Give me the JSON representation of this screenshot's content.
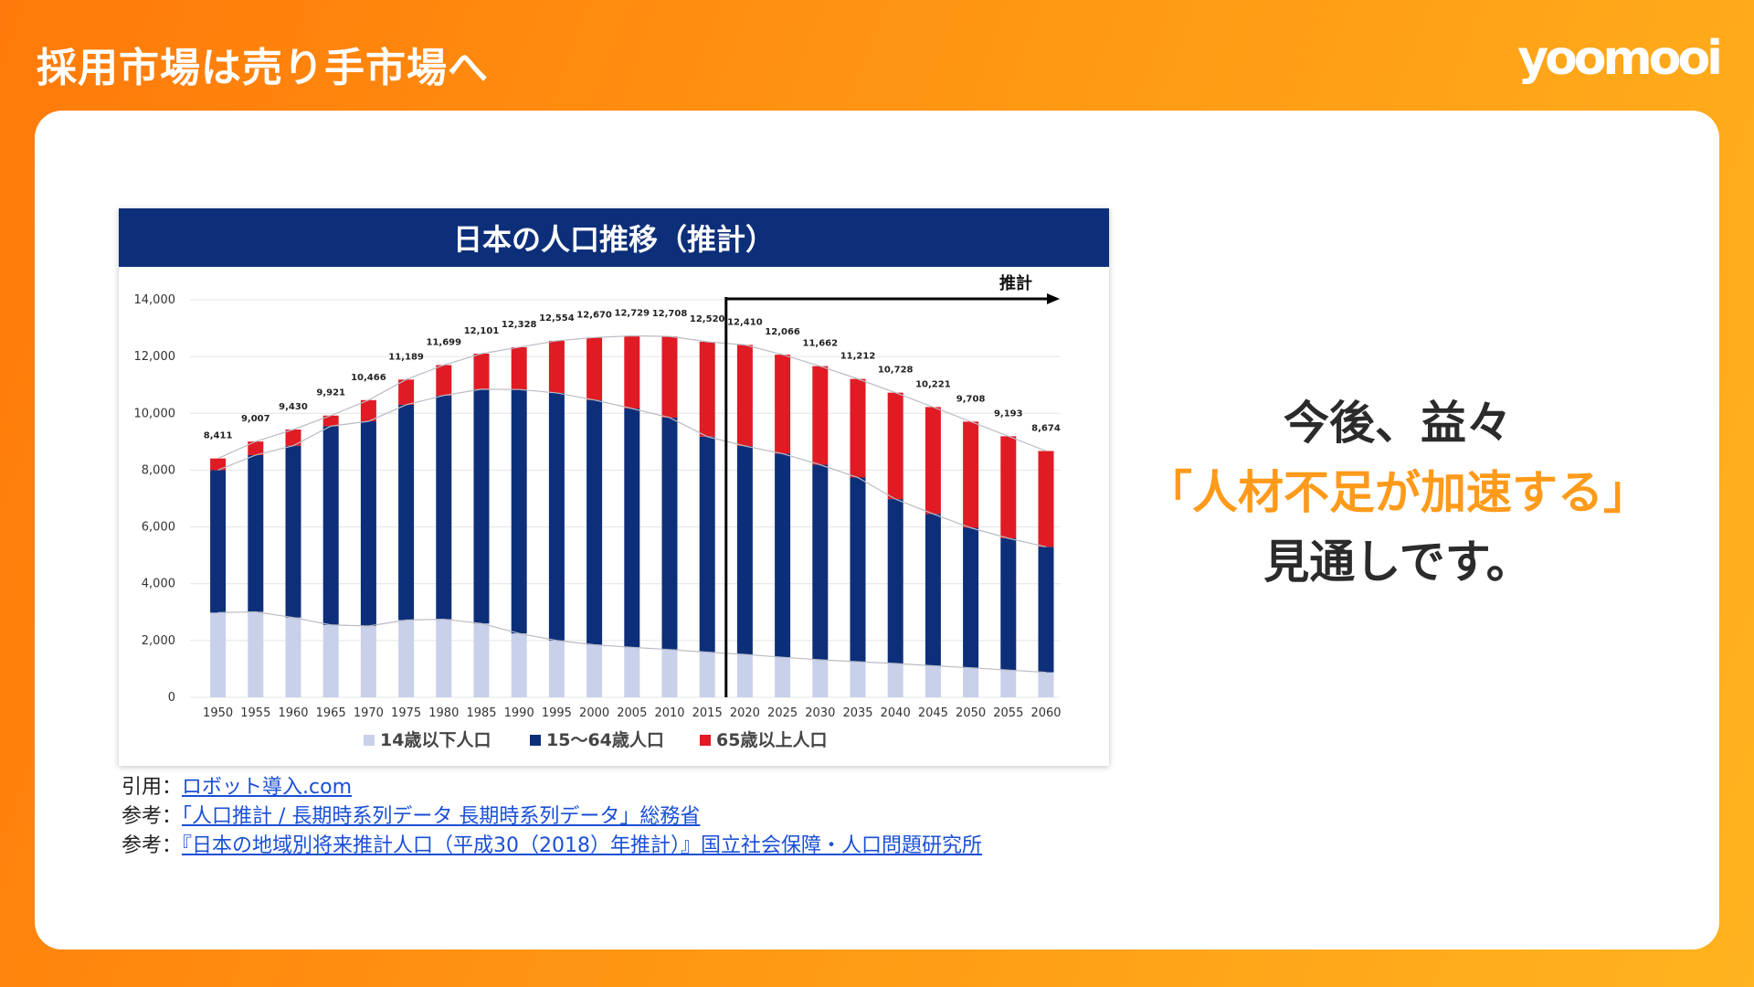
{
  "slide": {
    "title": "採用市場は売り手市場へ",
    "logo": "yoomooi"
  },
  "message": {
    "line1": "今後、益々",
    "line2": "「人材不足が加速する」",
    "line3": "見通しです。"
  },
  "references": [
    {
      "prefix": "引用：",
      "link": "ロボット導入.com"
    },
    {
      "prefix": "参考：",
      "link": "「人口推計 / 長期時系列データ 長期時系列データ」総務省"
    },
    {
      "prefix": "参考：",
      "link": "『日本の地域別将来推計人口（平成30（2018）年推計）』国立社会保障・人口問題研究所"
    }
  ],
  "colors": {
    "age0_14": "#c9d0ea",
    "age15_64": "#0d2f7a",
    "age65": "#e01b24",
    "accent": "#ff9a1a"
  },
  "chart_data": {
    "type": "bar",
    "stacked": true,
    "title": "日本の人口推移（推計）",
    "projection_label": "推計",
    "projection_start": "2020",
    "ylim": [
      0,
      14000
    ],
    "yticks": [
      "0",
      "2,000",
      "4,000",
      "6,000",
      "8,000",
      "10,000",
      "12,000",
      "14,000"
    ],
    "grid": true,
    "legend_position": "bottom",
    "categories": [
      "1950",
      "1955",
      "1960",
      "1965",
      "1970",
      "1975",
      "1980",
      "1985",
      "1990",
      "1995",
      "2000",
      "2005",
      "2010",
      "2015",
      "2020",
      "2025",
      "2030",
      "2035",
      "2040",
      "2045",
      "2050",
      "2055",
      "2060"
    ],
    "totals": [
      8411,
      9007,
      9430,
      9921,
      10466,
      11189,
      11699,
      12101,
      12328,
      12554,
      12670,
      12729,
      12708,
      12520,
      12410,
      12066,
      11662,
      11212,
      10728,
      10221,
      9708,
      9193,
      8674
    ],
    "total_labels": [
      "8,411",
      "9,007",
      "9,430",
      "9,921",
      "10,466",
      "11,189",
      "11,699",
      "12,101",
      "12,328",
      "12,554",
      "12,670",
      "12,729",
      "12,708",
      "12,520",
      "12,410",
      "12,066",
      "11,662",
      "11,212",
      "10,728",
      "10,221",
      "9,708",
      "9,193",
      "8,674"
    ],
    "series": [
      {
        "name": "14歳以下人口",
        "values": [
          2980,
          3010,
          2810,
          2550,
          2510,
          2720,
          2750,
          2600,
          2250,
          2000,
          1850,
          1760,
          1680,
          1590,
          1510,
          1410,
          1320,
          1250,
          1190,
          1110,
          1040,
          960,
          880
        ]
      },
      {
        "name": "15〜64歳人口",
        "values": [
          5020,
          5520,
          6050,
          7000,
          7210,
          7580,
          7880,
          8250,
          8590,
          8720,
          8620,
          8410,
          8170,
          7590,
          7340,
          7170,
          6870,
          6490,
          5790,
          5350,
          4930,
          4640,
          4420
        ]
      },
      {
        "name": "65歳以上人口",
        "values": [
          411,
          477,
          570,
          371,
          746,
          889,
          1069,
          1251,
          1488,
          1834,
          2200,
          2559,
          2858,
          3340,
          3560,
          3486,
          3472,
          3472,
          3748,
          3761,
          3738,
          3593,
          3374
        ]
      }
    ]
  }
}
